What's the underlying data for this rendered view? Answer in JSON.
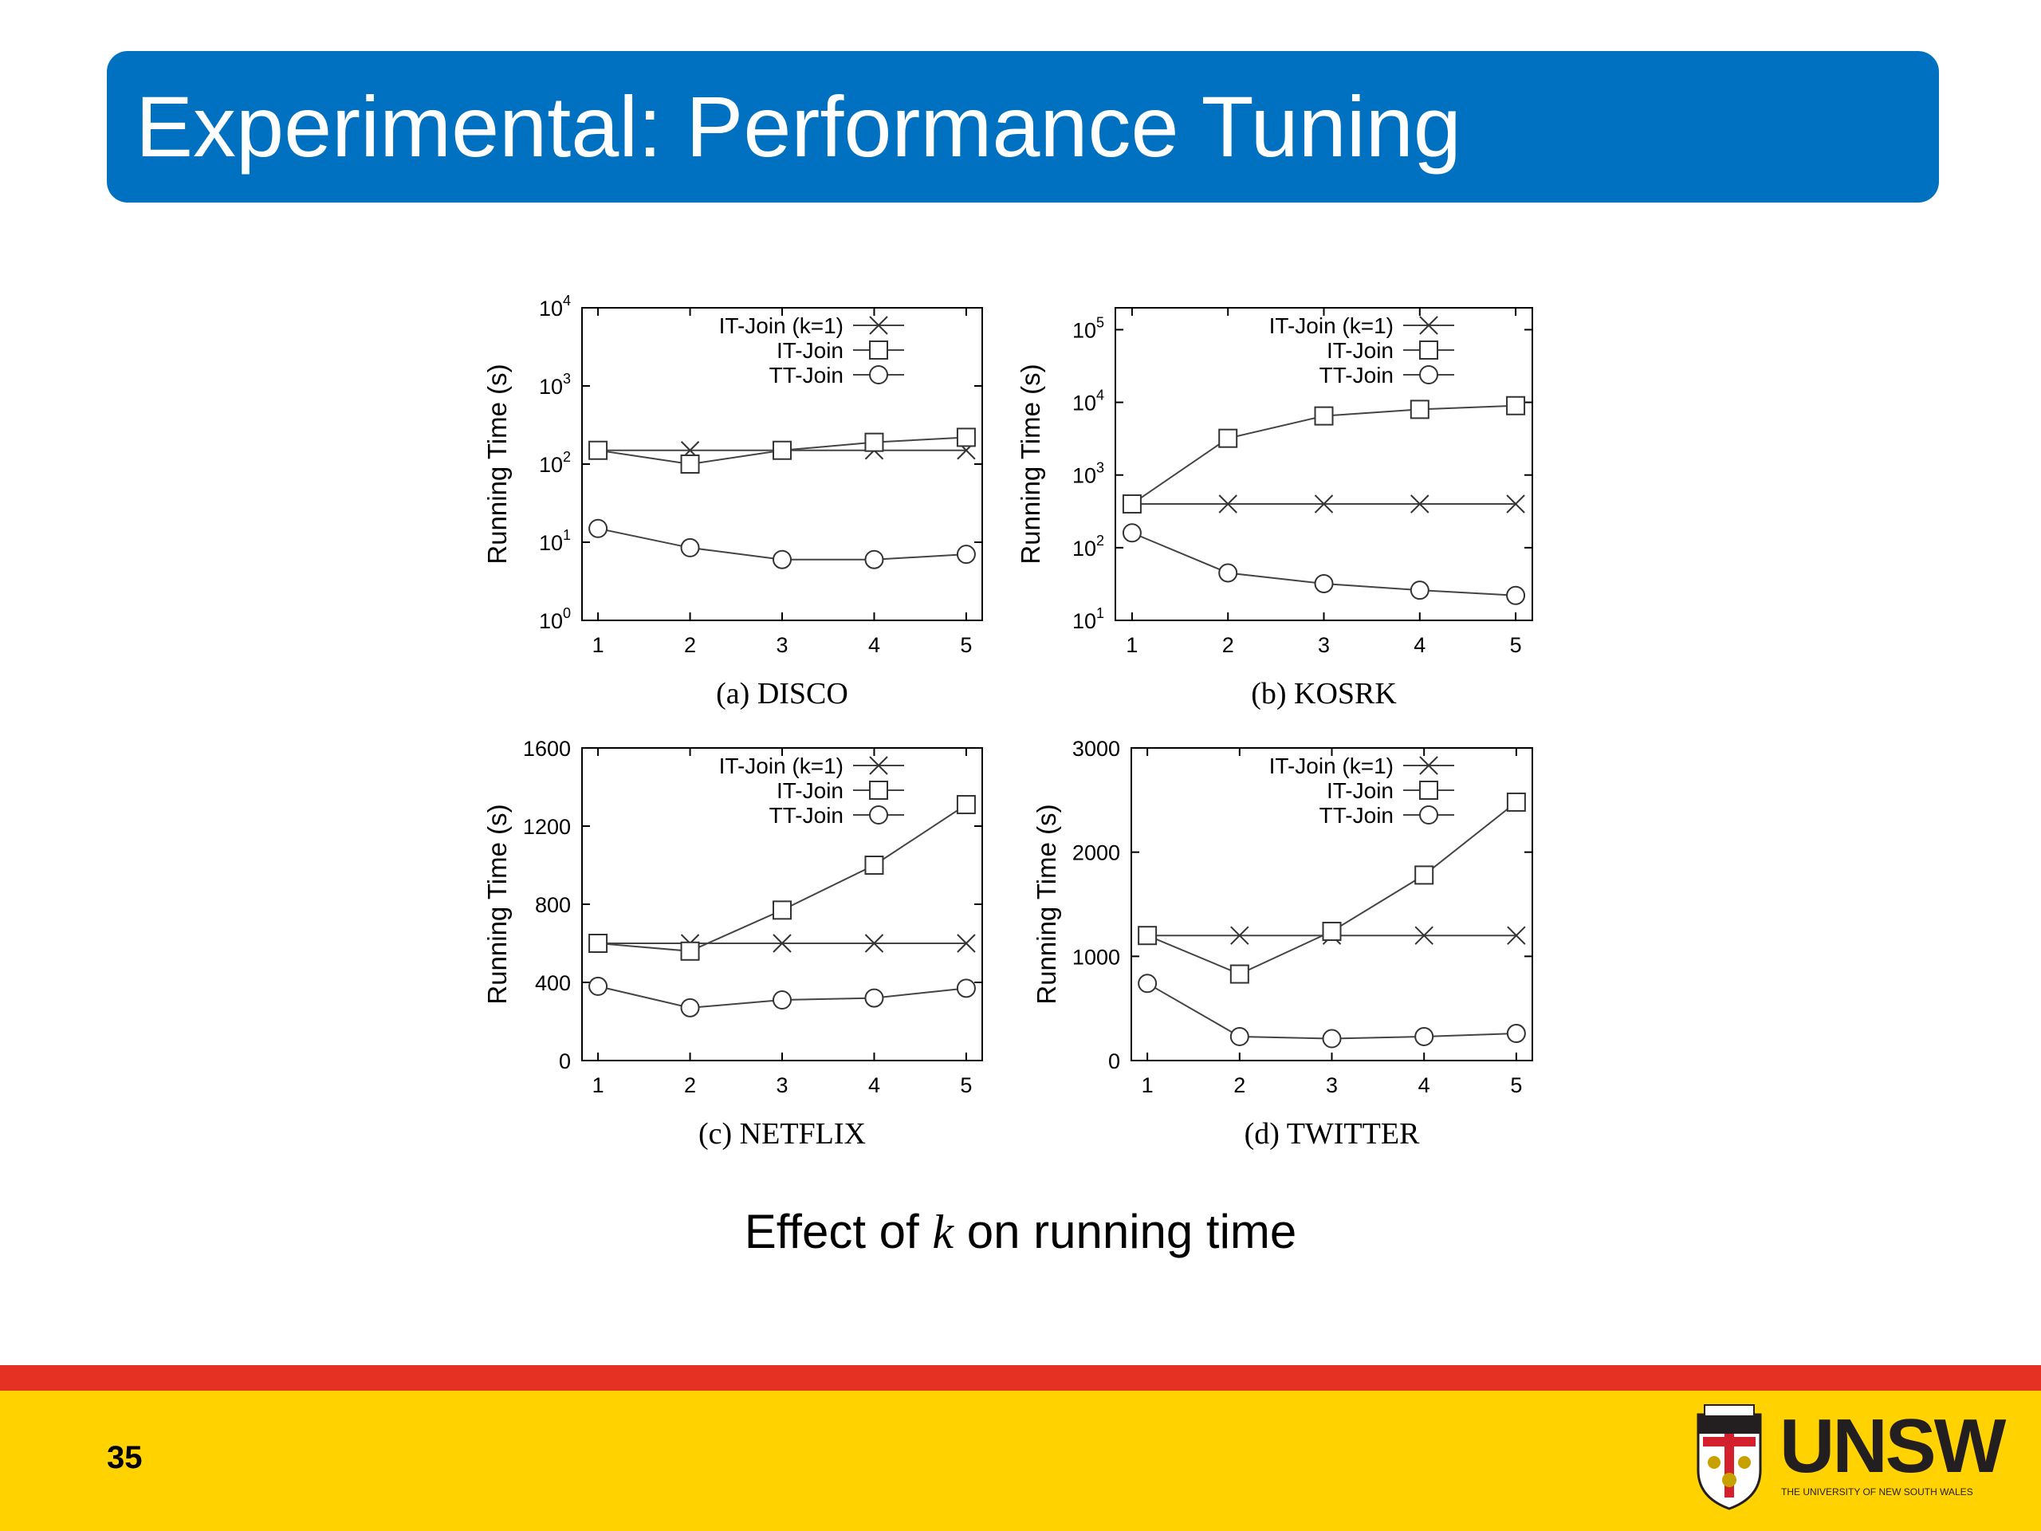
{
  "slide": {
    "title": "Experimental: Performance Tuning",
    "caption_before": "Effect of ",
    "caption_var": "k",
    "caption_after": " on running time",
    "page_number": "35"
  },
  "logo": {
    "name": "UNSW",
    "subtitle": "THE UNIVERSITY OF NEW SOUTH WALES"
  },
  "colors": {
    "title_bar": "#0070c0",
    "footer_red": "#e53124",
    "footer_yellow": "#ffd200"
  },
  "chart_data": [
    {
      "type": "line",
      "caption": "(a)  DISCO",
      "ylabel": "Running Time (s)",
      "yscale": "log",
      "ylim": [
        1,
        10000
      ],
      "yticks": [
        {
          "base": "10",
          "exp": "0",
          "v": 1
        },
        {
          "base": "10",
          "exp": "1",
          "v": 10
        },
        {
          "base": "10",
          "exp": "2",
          "v": 100
        },
        {
          "base": "10",
          "exp": "3",
          "v": 1000
        },
        {
          "base": "10",
          "exp": "4",
          "v": 10000
        }
      ],
      "x": [
        1,
        2,
        3,
        4,
        5
      ],
      "xticks": [
        "1",
        "2",
        "3",
        "4",
        "5"
      ],
      "legend": "top-right",
      "series": [
        {
          "name": "IT-Join (k=1)",
          "marker": "x",
          "values": [
            150,
            150,
            150,
            150,
            150
          ]
        },
        {
          "name": "IT-Join",
          "marker": "square",
          "values": [
            150,
            100,
            150,
            190,
            220
          ]
        },
        {
          "name": "TT-Join",
          "marker": "circle",
          "values": [
            15,
            8.5,
            6,
            6,
            7
          ]
        }
      ]
    },
    {
      "type": "line",
      "caption": "(b)  KOSRK",
      "ylabel": "Running Time (s)",
      "yscale": "log",
      "ylim": [
        10,
        200000
      ],
      "yticks": [
        {
          "base": "10",
          "exp": "1",
          "v": 10
        },
        {
          "base": "10",
          "exp": "2",
          "v": 100
        },
        {
          "base": "10",
          "exp": "3",
          "v": 1000
        },
        {
          "base": "10",
          "exp": "4",
          "v": 10000
        },
        {
          "base": "10",
          "exp": "5",
          "v": 100000
        }
      ],
      "x": [
        1,
        2,
        3,
        4,
        5
      ],
      "xticks": [
        "1",
        "2",
        "3",
        "4",
        "5"
      ],
      "legend": "top-right",
      "series": [
        {
          "name": "IT-Join (k=1)",
          "marker": "x",
          "values": [
            400,
            400,
            400,
            400,
            400
          ]
        },
        {
          "name": "IT-Join",
          "marker": "square",
          "values": [
            400,
            3200,
            6500,
            8000,
            9000
          ]
        },
        {
          "name": "TT-Join",
          "marker": "circle",
          "values": [
            160,
            45,
            32,
            26,
            22
          ]
        }
      ]
    },
    {
      "type": "line",
      "caption": "(c)  NETFLIX",
      "ylabel": "Running Time (s)",
      "yscale": "linear",
      "ylim": [
        0,
        1600
      ],
      "yticks": [
        {
          "label": "0",
          "v": 0
        },
        {
          "label": "400",
          "v": 400
        },
        {
          "label": "800",
          "v": 800
        },
        {
          "label": "1200",
          "v": 1200
        },
        {
          "label": "1600",
          "v": 1600
        }
      ],
      "x": [
        1,
        2,
        3,
        4,
        5
      ],
      "xticks": [
        "1",
        "2",
        "3",
        "4",
        "5"
      ],
      "legend": "top-right",
      "series": [
        {
          "name": "IT-Join (k=1)",
          "marker": "x",
          "values": [
            600,
            600,
            600,
            600,
            600
          ]
        },
        {
          "name": "IT-Join",
          "marker": "square",
          "values": [
            600,
            560,
            770,
            1000,
            1310
          ]
        },
        {
          "name": "TT-Join",
          "marker": "circle",
          "values": [
            380,
            270,
            310,
            320,
            370
          ]
        }
      ]
    },
    {
      "type": "line",
      "caption": "(d)  TWITTER",
      "ylabel": "Running Time (s)",
      "yscale": "linear",
      "ylim": [
        0,
        3000
      ],
      "yticks": [
        {
          "label": "0",
          "v": 0
        },
        {
          "label": "1000",
          "v": 1000
        },
        {
          "label": "2000",
          "v": 2000
        },
        {
          "label": "3000",
          "v": 3000
        }
      ],
      "x": [
        1,
        2,
        3,
        4,
        5
      ],
      "xticks": [
        "1",
        "2",
        "3",
        "4",
        "5"
      ],
      "legend": "top-right",
      "series": [
        {
          "name": "IT-Join (k=1)",
          "marker": "x",
          "values": [
            1200,
            1200,
            1200,
            1200,
            1200
          ]
        },
        {
          "name": "IT-Join",
          "marker": "square",
          "values": [
            1200,
            830,
            1240,
            1780,
            2480
          ]
        },
        {
          "name": "TT-Join",
          "marker": "circle",
          "values": [
            740,
            230,
            210,
            230,
            260
          ]
        }
      ]
    }
  ]
}
